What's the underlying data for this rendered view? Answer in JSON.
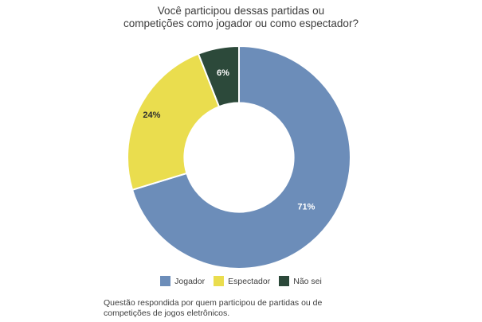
{
  "chart_title": {
    "line1": "Você participou dessas partidas ou",
    "line2": "competições como jogador ou como espectador?"
  },
  "legend": {
    "items": [
      {
        "label": "Jogador"
      },
      {
        "label": "Espectador"
      },
      {
        "label": "Não sei"
      }
    ]
  },
  "footnote": {
    "line1": "Questão respondida por quem participou de partidas ou de",
    "line2": "competições de jogos eletrônicos."
  },
  "chart_data": {
    "type": "pie",
    "subtype": "donut",
    "title": "Você participou dessas partidas ou competições como jogador ou como espectador?",
    "categories": [
      "Jogador",
      "Espectador",
      "Não sei"
    ],
    "values": [
      71,
      24,
      6
    ],
    "value_labels": [
      "71%",
      "24%",
      "6%"
    ],
    "colors": [
      "#6C8DB9",
      "#EADD4E",
      "#2C493A"
    ],
    "value_label_colors": [
      "#FFFFFF",
      "#2E2E2E",
      "#FFFFFF"
    ],
    "start_angle_deg": 0,
    "direction": "clockwise",
    "inner_radius_ratio": 0.49,
    "label_radius_ratio": [
      0.75,
      0.87,
      0.77
    ],
    "slice_gap_color": "#FFFFFF",
    "legend_position": "bottom",
    "footnote": "Questão respondida por quem participou de partidas ou de competições de jogos eletrônicos."
  }
}
